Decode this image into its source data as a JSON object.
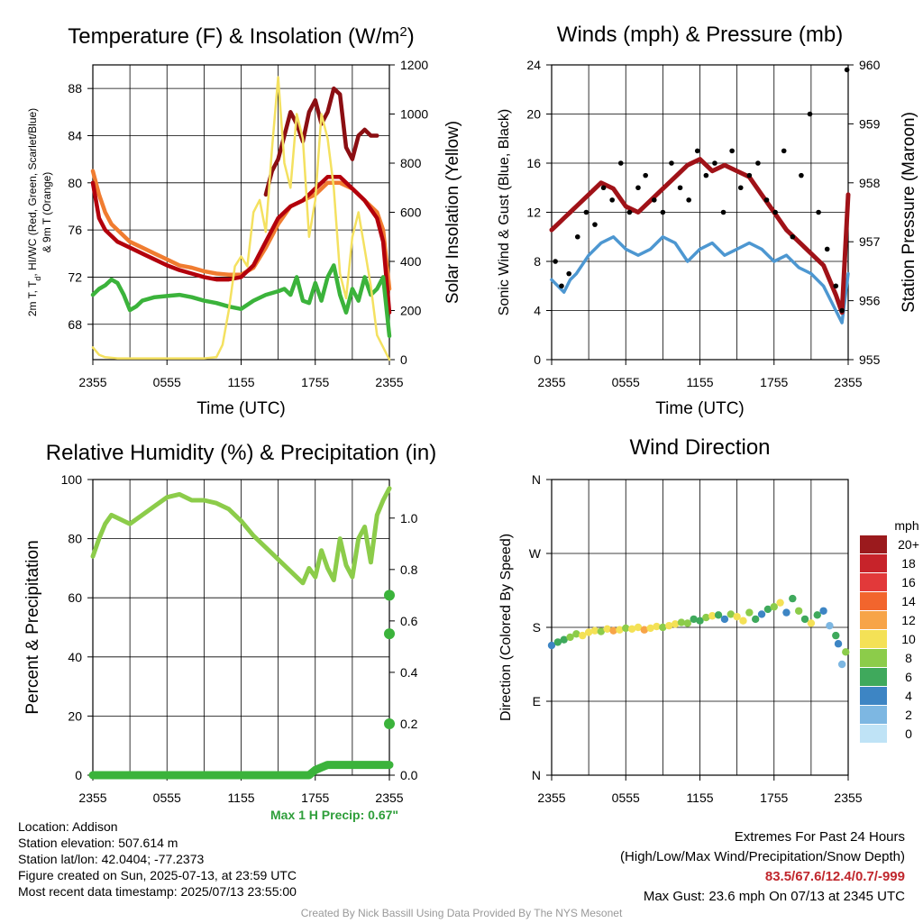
{
  "chart_data": [
    {
      "id": "temperature",
      "type": "line",
      "title": "Temperature (F) & Insolation (W/m",
      "title_sup": "2",
      "title_close": ")",
      "xlabel": "Time (UTC)",
      "ylabel_line1": "2m T, T",
      "ylabel_sub": "d",
      "ylabel_line1_rest": ", HI/WC (Red, Green, Scarlet/Blue)",
      "ylabel_line2": "& 9m T (Orange)",
      "ylabel_right": "Solar Insolation (Yellow)",
      "x_ticks": [
        "2355",
        "0555",
        "1155",
        "1755",
        "2355"
      ],
      "x_range_hours": [
        0,
        24
      ],
      "ylim": [
        65,
        90
      ],
      "y_ticks": [
        68,
        72,
        76,
        80,
        84,
        88
      ],
      "ylim_right": [
        0,
        1200
      ],
      "y_ticks_right": [
        0,
        200,
        400,
        600,
        800,
        1000,
        1200
      ],
      "series": [
        {
          "color": "#f07c30",
          "axis": "left",
          "x": [
            0,
            0.5,
            1,
            1.5,
            2,
            3,
            4,
            5,
            6,
            7,
            8,
            9,
            10,
            11,
            12,
            13,
            14,
            15,
            16,
            17,
            18,
            19,
            20,
            21,
            22,
            23,
            23.5,
            24
          ],
          "y": [
            81,
            79,
            77.5,
            76.5,
            76,
            75,
            74.5,
            74,
            73.5,
            73,
            72.8,
            72.5,
            72.3,
            72.2,
            72.2,
            72.8,
            74.5,
            76.5,
            78,
            78.5,
            79,
            80,
            80,
            79.5,
            78.5,
            77.5,
            76,
            71
          ]
        },
        {
          "color": "#b3000c",
          "axis": "left",
          "x": [
            0,
            0.5,
            1,
            1.5,
            2,
            3,
            4,
            5,
            6,
            7,
            8,
            9,
            10,
            11,
            12,
            13,
            14,
            15,
            16,
            17,
            18,
            19,
            20,
            21,
            22,
            23,
            23.5,
            24
          ],
          "y": [
            80,
            77,
            76,
            75.5,
            75,
            74.5,
            74,
            73.5,
            73,
            72.6,
            72.3,
            72,
            71.8,
            71.8,
            72,
            73,
            75,
            77,
            78,
            78.5,
            79.5,
            80.5,
            80.5,
            79.5,
            78.5,
            77,
            75,
            69
          ]
        },
        {
          "color": "#8b0e12",
          "axis": "left",
          "x": [
            14,
            14.5,
            15,
            15.5,
            16,
            16.5,
            17,
            17.5,
            18,
            18.5,
            19,
            19.5,
            20,
            20.5,
            21,
            21.5,
            22,
            22.5,
            23
          ],
          "y": [
            79,
            81,
            82,
            84,
            86,
            85,
            83.5,
            86,
            87,
            85,
            86,
            88,
            87.5,
            83,
            82,
            84,
            84.5,
            84,
            84
          ]
        },
        {
          "color": "#3bb33b",
          "axis": "left",
          "x": [
            0,
            0.5,
            1,
            1.5,
            2,
            2.5,
            3,
            3.5,
            4,
            5,
            6,
            7,
            8,
            9,
            10,
            11,
            12,
            13,
            14,
            15,
            15.5,
            16,
            16.5,
            17,
            17.5,
            18,
            18.5,
            19,
            19.5,
            20,
            20.5,
            21,
            21.5,
            22,
            22.5,
            23,
            23.5,
            24
          ],
          "y": [
            70.5,
            71,
            71.3,
            71.8,
            71.5,
            70.5,
            69.2,
            69.5,
            70,
            70.3,
            70.4,
            70.5,
            70.3,
            70,
            69.8,
            69.5,
            69.3,
            70,
            70.5,
            70.8,
            71,
            70.5,
            72,
            70,
            69.8,
            71.5,
            70,
            72,
            73,
            70.5,
            69,
            71,
            70,
            72,
            70.5,
            71,
            72,
            67
          ]
        },
        {
          "color": "#f4e160",
          "axis": "right",
          "x": [
            0,
            0.5,
            1,
            2,
            4,
            6,
            8,
            9,
            10,
            10.5,
            11,
            11.5,
            12,
            12.5,
            13,
            13.5,
            14,
            14.5,
            15,
            15.5,
            16,
            16.5,
            17,
            17.5,
            18,
            18.5,
            19,
            19.5,
            20,
            20.5,
            21,
            21.5,
            22,
            22.5,
            23,
            24
          ],
          "y": [
            50,
            20,
            10,
            5,
            5,
            5,
            5,
            5,
            10,
            60,
            200,
            380,
            420,
            380,
            600,
            650,
            520,
            860,
            1150,
            800,
            700,
            1000,
            900,
            500,
            650,
            1000,
            900,
            700,
            350,
            250,
            500,
            600,
            450,
            300,
            100,
            0
          ]
        }
      ]
    },
    {
      "id": "winds",
      "type": "line",
      "title": "Winds (mph) & Pressure (mb)",
      "xlabel": "Time (UTC)",
      "ylabel": "Sonic Wind & Gust (Blue, Black)",
      "ylabel_right": "Station Pressure (Maroon)",
      "x_ticks": [
        "2355",
        "0555",
        "1155",
        "1755",
        "2355"
      ],
      "ylim": [
        0,
        24
      ],
      "y_ticks": [
        0,
        4,
        8,
        12,
        16,
        20,
        24
      ],
      "ylim_right": [
        955,
        960
      ],
      "y_ticks_right": [
        955,
        956,
        957,
        958,
        959,
        960
      ],
      "series": [
        {
          "color": "#4d97d1",
          "axis": "left",
          "x": [
            0,
            0.5,
            1,
            1.5,
            2,
            3,
            4,
            5,
            6,
            7,
            8,
            9,
            10,
            11,
            12,
            13,
            14,
            15,
            16,
            17,
            18,
            19,
            20,
            21,
            22,
            23,
            23.5,
            24
          ],
          "y": [
            6.5,
            6,
            5.5,
            6.5,
            7,
            8.5,
            9.5,
            10,
            9,
            8.5,
            9,
            10,
            9.5,
            8,
            9,
            9.5,
            8.5,
            9,
            9.5,
            9,
            8,
            8.5,
            7.5,
            7,
            6,
            4,
            3,
            7
          ]
        },
        {
          "color": "#a01218",
          "axis": "right",
          "x": [
            0,
            0.5,
            1,
            1.5,
            2,
            3,
            4,
            5,
            6,
            7,
            8,
            9,
            10,
            11,
            12,
            13,
            14,
            15,
            16,
            17,
            18,
            19,
            20,
            21,
            22,
            23,
            23.5,
            24
          ],
          "y": [
            957.2,
            957.3,
            957.4,
            957.5,
            957.6,
            957.8,
            958.0,
            957.9,
            957.6,
            957.5,
            957.7,
            957.9,
            958.1,
            958.3,
            958.4,
            958.2,
            958.3,
            958.2,
            958.1,
            957.8,
            957.5,
            957.2,
            957.0,
            956.8,
            956.6,
            956.1,
            955.8,
            957.8
          ]
        },
        {
          "color": "#000000",
          "axis": "left",
          "type": "scatter",
          "x": [
            0.3,
            0.8,
            1.4,
            2.1,
            2.8,
            3.5,
            4.2,
            4.9,
            5.6,
            6.3,
            7.0,
            7.6,
            8.3,
            9.0,
            9.7,
            10.4,
            11.1,
            11.8,
            12.5,
            13.2,
            13.9,
            14.6,
            15.3,
            16.0,
            16.7,
            17.4,
            18.1,
            18.8,
            19.5,
            20.2,
            20.9,
            21.6,
            22.3,
            23.0,
            23.5,
            23.9
          ],
          "y": [
            8,
            6,
            7,
            10,
            12,
            11,
            14,
            13,
            16,
            12,
            14,
            15,
            13,
            12,
            16,
            14,
            13,
            17,
            15,
            16,
            12,
            17,
            14,
            15,
            16,
            13,
            12,
            17,
            10,
            15,
            20,
            12,
            9,
            6,
            4,
            23.6
          ]
        }
      ]
    },
    {
      "id": "humidity",
      "type": "line",
      "title": "Relative Humidity (%) & Precipitation (in)",
      "ylabel": "Percent & Precipitation",
      "x_ticks": [
        "2355",
        "0555",
        "1155",
        "1755",
        "2355"
      ],
      "ylim": [
        0,
        100
      ],
      "y_ticks": [
        0,
        20,
        40,
        60,
        80,
        100
      ],
      "ylim_right": [
        0,
        1.15
      ],
      "y_ticks_right": [
        "0.0",
        "0.2",
        "0.4",
        "0.6",
        "0.8",
        "1.0"
      ],
      "series": [
        {
          "color": "#8ccc4a",
          "axis": "left",
          "x": [
            0,
            0.5,
            1,
            1.5,
            2,
            3,
            4,
            5,
            6,
            7,
            8,
            9,
            10,
            11,
            12,
            13,
            14,
            15,
            16,
            17,
            17.5,
            18,
            18.5,
            19,
            19.5,
            20,
            20.5,
            21,
            21.5,
            22,
            22.5,
            23,
            23.5,
            24
          ],
          "y": [
            74,
            80,
            85,
            88,
            87,
            85,
            88,
            91,
            94,
            95,
            93,
            93,
            92,
            90,
            86,
            81,
            77,
            73,
            69,
            65,
            70,
            67,
            76,
            70,
            66,
            80,
            71,
            67,
            80,
            84,
            72,
            88,
            93,
            97
          ]
        },
        {
          "color": "#3bb33b",
          "axis": "right",
          "x": [
            0,
            2,
            4,
            6,
            8,
            10,
            12,
            14,
            16,
            17.5,
            18,
            18.5,
            19,
            20,
            21,
            22,
            23,
            24
          ],
          "y": [
            0,
            0,
            0,
            0,
            0,
            0,
            0,
            0,
            0,
            0,
            0.02,
            0.03,
            0.04,
            0.04,
            0.04,
            0.04,
            0.04,
            0.04
          ]
        },
        {
          "color": "#3bb33b",
          "axis": "right",
          "type": "scatter",
          "x": [
            24,
            24,
            24
          ],
          "y": [
            0.2,
            0.55,
            0.7
          ]
        }
      ]
    },
    {
      "id": "direction",
      "type": "scatter",
      "title": "Wind Direction",
      "ylabel": "Direction (Colored By Speed)",
      "x_ticks": [
        "2355",
        "0555",
        "1155",
        "1755",
        "2355"
      ],
      "y_ticks": [
        "N",
        "E",
        "S",
        "W",
        "N"
      ],
      "ylim": [
        0,
        360
      ],
      "x": [
        0,
        0.5,
        1,
        1.5,
        2,
        2.5,
        3,
        3.5,
        4,
        4.5,
        5,
        5.5,
        6,
        6.5,
        7,
        7.5,
        8,
        8.5,
        9,
        9.5,
        10,
        10.5,
        11,
        11.5,
        12,
        12.5,
        13,
        13.5,
        14,
        14.5,
        15,
        15.5,
        16,
        16.5,
        17,
        17.5,
        18,
        18.5,
        19,
        19.5,
        20,
        20.5,
        21,
        21.5,
        22,
        22.5,
        23,
        23.2,
        23.5,
        23.8
      ],
      "y": [
        158,
        162,
        165,
        168,
        172,
        170,
        174,
        176,
        175,
        178,
        176,
        177,
        179,
        178,
        180,
        177,
        179,
        181,
        180,
        182,
        184,
        186,
        185,
        190,
        188,
        192,
        194,
        195,
        190,
        196,
        193,
        188,
        198,
        190,
        196,
        202,
        205,
        210,
        198,
        215,
        200,
        190,
        185,
        195,
        200,
        182,
        170,
        160,
        135,
        150
      ],
      "speeds": [
        4,
        5,
        6,
        7,
        8,
        9,
        10,
        9,
        8,
        10,
        11,
        9,
        8,
        10,
        9,
        11,
        10,
        9,
        8,
        9,
        10,
        8,
        7,
        6,
        5,
        8,
        9,
        6,
        4,
        7,
        9,
        10,
        8,
        6,
        4,
        5,
        7,
        10,
        3,
        6,
        8,
        5,
        9,
        6,
        4,
        2,
        5,
        3,
        2,
        7
      ],
      "legend_title": "mph",
      "legend_labels": [
        "20+",
        "18",
        "16",
        "14",
        "12",
        "10",
        "8",
        "6",
        "4",
        "2",
        "0"
      ],
      "legend_colors": [
        "#9b1a1d",
        "#c7232a",
        "#e2393a",
        "#f2652d",
        "#f7a448",
        "#f4e156",
        "#8ccc4a",
        "#3fa95c",
        "#3d85c4",
        "#7db7e2",
        "#bfe3f6"
      ]
    }
  ],
  "max_precip": "Max 1 H Precip: 0.67\"",
  "info": {
    "location": "Location: Addison",
    "elevation": "Station elevation: 507.614 m",
    "latlon": "Station lat/lon: 42.0404; -77.2373",
    "created": "Figure created on Sun, 2025-07-13, at 23:59 UTC",
    "recent": "Most recent data timestamp: 2025/07/13 23:55:00"
  },
  "extremes": {
    "title": "Extremes For Past 24 Hours",
    "subtitle": "(High/Low/Max Wind/Precipitation/Snow Depth)",
    "values": "83.5/67.6/12.4/0.7/-999",
    "gust": "Max Gust: 23.6 mph On 07/13 at 2345 UTC"
  },
  "credit": "Created By Nick Bassill Using Data Provided By The NYS Mesonet"
}
